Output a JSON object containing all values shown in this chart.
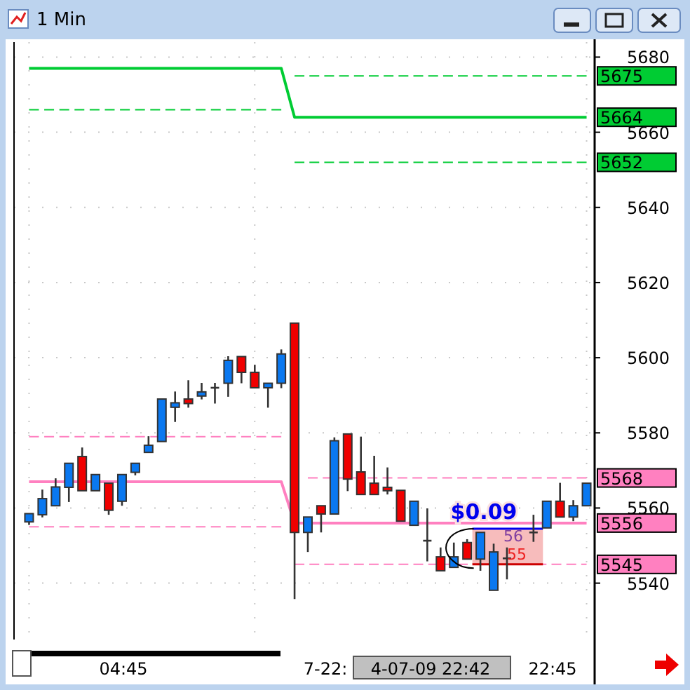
{
  "chart_data": {
    "type": "candlestick",
    "title": "1 Min",
    "categories": [
      null,
      null,
      null,
      null,
      null,
      null,
      null,
      null,
      null,
      null,
      null,
      null,
      null,
      null,
      null,
      null,
      null,
      null,
      null,
      null,
      null,
      null,
      null,
      null,
      null,
      null,
      null,
      null,
      null,
      null,
      null,
      null,
      null,
      null,
      null,
      null,
      null,
      null,
      null,
      null,
      null,
      null,
      null
    ],
    "ohlc": [
      [
        5556.3,
        5558.5,
        5555.5,
        5558.5
      ],
      [
        5558.2,
        5564.9,
        5557.5,
        5562.5
      ],
      [
        5560.6,
        5567.9,
        5560.6,
        5565.6
      ],
      [
        5565.5,
        5571.9,
        5561.6,
        5571.9
      ],
      [
        5573.7,
        5576.1,
        5564.6,
        5564.6
      ],
      [
        5564.6,
        5568.9,
        5564.6,
        5568.9
      ],
      [
        5566.6,
        5566.6,
        5558.2,
        5559.4
      ],
      [
        5561.8,
        5568.9,
        5560.6,
        5568.9
      ],
      [
        5569.5,
        5571.9,
        5568.7,
        5571.9
      ],
      [
        5574.8,
        5579.1,
        5574.8,
        5576.7
      ],
      [
        5577.7,
        5589.0,
        5577.7,
        5589.0
      ],
      [
        5586.8,
        5591.0,
        5582.9,
        5588.0
      ],
      [
        5589.0,
        5594.0,
        5586.7,
        5587.8
      ],
      [
        5589.8,
        5593.3,
        5588.9,
        5590.9
      ],
      [
        5592.0,
        5593.3,
        5587.8,
        5592.0
      ],
      [
        5593.2,
        5600.4,
        5589.6,
        5599.3
      ],
      [
        5600.3,
        5600.3,
        5593.2,
        5596.1
      ],
      [
        5596.1,
        5598.1,
        5592.0,
        5592.0
      ],
      [
        5592.0,
        5593.2,
        5586.7,
        5593.2
      ],
      [
        5593.2,
        5602.2,
        5591.9,
        5601.0
      ],
      [
        5609.2,
        5609.2,
        5535.8,
        5553.5
      ],
      [
        5553.5,
        5557.6,
        5548.3,
        5557.6
      ],
      [
        5560.6,
        5560.6,
        5553.5,
        5558.4
      ],
      [
        5558.4,
        5578.8,
        5558.4,
        5577.9
      ],
      [
        5579.7,
        5579.7,
        5564.5,
        5567.7
      ],
      [
        5569.6,
        5579.0,
        5563.6,
        5563.6
      ],
      [
        5566.6,
        5573.9,
        5563.6,
        5563.6
      ],
      [
        5565.5,
        5570.8,
        5563.6,
        5564.6
      ],
      [
        5564.7,
        5564.7,
        5556.5,
        5556.5
      ],
      [
        5555.4,
        5561.8,
        5555.4,
        5561.8
      ],
      [
        5551.3,
        5559.9,
        5545.8,
        5551.3
      ],
      [
        5547.0,
        5549.5,
        5543.3,
        5543.3
      ],
      [
        5544.2,
        5550.8,
        5544.2,
        5547.0
      ],
      [
        5550.8,
        5551.7,
        5546.4,
        5546.4
      ],
      [
        5546.4,
        5553.5,
        5543.3,
        5553.5
      ],
      [
        5538.1,
        5550.5,
        5538.1,
        5548.3
      ],
      [
        5546.6,
        5549.5,
        5541.0,
        5546.6
      ],
      null,
      [
        5553.5,
        5558.2,
        5551.0,
        5553.5
      ],
      [
        5554.7,
        5561.8,
        5554.7,
        5561.8
      ],
      [
        5561.8,
        5566.7,
        5557.6,
        5557.6
      ],
      [
        5557.6,
        5562.1,
        5556.5,
        5560.6
      ],
      [
        5560.6,
        5566.6,
        5560.6,
        5566.6
      ]
    ],
    "colors": [
      "#0a78f0",
      "#0a78f0",
      "#0a78f0",
      "#0a78f0",
      "#f00000",
      "#0a78f0",
      "#f00000",
      "#0a78f0",
      "#0a78f0",
      "#0a78f0",
      "#0a78f0",
      "#0a78f0",
      "#f00000",
      "#0a78f0",
      "#333333",
      "#0a78f0",
      "#f00000",
      "#f00000",
      "#0a78f0",
      "#0a78f0",
      "#f00000",
      "#0a78f0",
      "#f00000",
      "#0a78f0",
      "#f00000",
      "#f00000",
      "#f00000",
      "#f00000",
      "#f00000",
      "#0a78f0",
      "#333333",
      "#f00000",
      "#0a78f0",
      "#f00000",
      "#0a78f0",
      "#0a78f0",
      "#333333",
      null,
      "#333333",
      "#0a78f0",
      "#f00000",
      "#0a78f0",
      "#0a78f0"
    ],
    "series": [
      {
        "type": "line",
        "color": "#00cc33",
        "line_style": "solid",
        "values": [
          5677,
          5677,
          5677,
          5677,
          5677,
          5677,
          5677,
          5677,
          5677,
          5677,
          5677,
          5677,
          5677,
          5677,
          5677,
          5677,
          5677,
          5677,
          5677,
          5677,
          5664,
          5664,
          5664,
          5664,
          5664,
          5664,
          5664,
          5664,
          5664,
          5664,
          5664,
          5664,
          5664,
          5664,
          5664,
          5664,
          5664,
          5664,
          5664,
          5664,
          5664,
          5664,
          5664
        ],
        "value_labels": [
          null,
          null,
          null,
          null,
          null,
          null,
          null,
          null,
          null,
          null,
          null,
          null,
          null,
          null,
          null,
          null,
          null,
          null,
          null,
          null,
          null,
          null,
          null,
          null,
          null,
          null,
          null,
          null,
          null,
          null,
          null,
          null,
          null,
          null,
          null,
          null,
          null,
          null,
          null,
          null,
          null,
          null,
          "5664"
        ]
      },
      {
        "type": "line",
        "color": "#00cc33",
        "line_style": "dashed",
        "values": [
          5666,
          5666,
          5666,
          5666,
          5666,
          5666,
          5666,
          5666,
          5666,
          5666,
          5666,
          5666,
          5666,
          5666,
          5666,
          5666,
          5666,
          5666,
          5666,
          5666,
          null,
          null,
          null,
          null,
          null,
          null,
          null,
          null,
          null,
          null,
          null,
          null,
          null,
          null,
          null,
          null,
          null,
          null,
          null,
          null,
          null,
          null,
          null
        ]
      },
      {
        "type": "line",
        "color": "#00cc33",
        "line_style": "dashed",
        "values": [
          null,
          null,
          null,
          null,
          null,
          null,
          null,
          null,
          null,
          null,
          null,
          null,
          null,
          null,
          null,
          null,
          null,
          null,
          null,
          null,
          5675,
          5675,
          5675,
          5675,
          5675,
          5675,
          5675,
          5675,
          5675,
          5675,
          5675,
          5675,
          5675,
          5675,
          5675,
          5675,
          5675,
          5675,
          5675,
          5675,
          5675,
          5675,
          5675
        ],
        "value_labels": [
          null,
          null,
          null,
          null,
          null,
          null,
          null,
          null,
          null,
          null,
          null,
          null,
          null,
          null,
          null,
          null,
          null,
          null,
          null,
          null,
          null,
          null,
          null,
          null,
          null,
          null,
          null,
          null,
          null,
          null,
          null,
          null,
          null,
          null,
          null,
          null,
          null,
          null,
          null,
          null,
          null,
          null,
          "5675"
        ]
      },
      {
        "type": "line",
        "color": "#00cc33",
        "line_style": "dashed",
        "values": [
          null,
          null,
          null,
          null,
          null,
          null,
          null,
          null,
          null,
          null,
          null,
          null,
          null,
          null,
          null,
          null,
          null,
          null,
          null,
          null,
          5652,
          5652,
          5652,
          5652,
          5652,
          5652,
          5652,
          5652,
          5652,
          5652,
          5652,
          5652,
          5652,
          5652,
          5652,
          5652,
          5652,
          5652,
          5652,
          5652,
          5652,
          5652,
          5652
        ],
        "value_labels": [
          null,
          null,
          null,
          null,
          null,
          null,
          null,
          null,
          null,
          null,
          null,
          null,
          null,
          null,
          null,
          null,
          null,
          null,
          null,
          null,
          null,
          null,
          null,
          null,
          null,
          null,
          null,
          null,
          null,
          null,
          null,
          null,
          null,
          null,
          null,
          null,
          null,
          null,
          null,
          null,
          null,
          null,
          "5652"
        ]
      },
      {
        "type": "line",
        "color": "#ff80c0",
        "line_style": "solid",
        "values": [
          5567,
          5567,
          5567,
          5567,
          5567,
          5567,
          5567,
          5567,
          5567,
          5567,
          5567,
          5567,
          5567,
          5567,
          5567,
          5567,
          5567,
          5567,
          5567,
          5567,
          5556,
          5556,
          5556,
          5556,
          5556,
          5556,
          5556,
          5556,
          5556,
          5556,
          5556,
          5556,
          5556,
          5556,
          5556,
          5556,
          5556,
          5556,
          5556,
          5556,
          5556,
          5556,
          5556
        ],
        "value_labels": [
          null,
          null,
          null,
          null,
          null,
          null,
          null,
          null,
          null,
          null,
          null,
          null,
          null,
          null,
          null,
          null,
          null,
          null,
          null,
          null,
          null,
          null,
          null,
          null,
          null,
          null,
          null,
          null,
          null,
          null,
          null,
          null,
          null,
          null,
          null,
          null,
          null,
          null,
          null,
          null,
          null,
          null,
          "5556"
        ]
      },
      {
        "type": "line",
        "color": "#ff80c0",
        "line_style": "dashed",
        "values": [
          5579,
          5579,
          5579,
          5579,
          5579,
          5579,
          5579,
          5579,
          5579,
          5579,
          5579,
          5579,
          5579,
          5579,
          5579,
          5579,
          5579,
          5579,
          5579,
          5579,
          null,
          null,
          null,
          null,
          null,
          null,
          null,
          null,
          null,
          null,
          null,
          null,
          null,
          null,
          null,
          null,
          null,
          null,
          null,
          null,
          null,
          null,
          null
        ]
      },
      {
        "type": "line",
        "color": "#ff80c0",
        "line_style": "dashed",
        "values": [
          5555,
          5555,
          5555,
          5555,
          5555,
          5555,
          5555,
          5555,
          5555,
          5555,
          5555,
          5555,
          5555,
          5555,
          5555,
          5555,
          5555,
          5555,
          5555,
          5555,
          null,
          null,
          null,
          null,
          null,
          null,
          null,
          null,
          null,
          null,
          null,
          null,
          null,
          null,
          null,
          null,
          null,
          null,
          null,
          null,
          null,
          null,
          null
        ]
      },
      {
        "type": "line",
        "color": "#ff80c0",
        "line_style": "dashed",
        "values": [
          null,
          null,
          null,
          null,
          null,
          null,
          null,
          null,
          null,
          null,
          null,
          null,
          null,
          null,
          null,
          null,
          null,
          null,
          null,
          null,
          null,
          5568,
          5568,
          5568,
          5568,
          5568,
          5568,
          5568,
          5568,
          5568,
          5568,
          5568,
          5568,
          5568,
          5568,
          5568,
          5568,
          5568,
          5568,
          5568,
          5568,
          5568,
          5568
        ],
        "value_labels": [
          null,
          null,
          null,
          null,
          null,
          null,
          null,
          null,
          null,
          null,
          null,
          null,
          null,
          null,
          null,
          null,
          null,
          null,
          null,
          null,
          null,
          null,
          null,
          null,
          null,
          null,
          null,
          null,
          null,
          null,
          null,
          null,
          null,
          null,
          null,
          null,
          null,
          null,
          null,
          null,
          null,
          null,
          "5568"
        ]
      },
      {
        "type": "line",
        "color": "#ff80c0",
        "line_style": "dashed",
        "values": [
          null,
          null,
          null,
          null,
          null,
          null,
          null,
          null,
          null,
          null,
          null,
          null,
          null,
          null,
          null,
          null,
          null,
          null,
          null,
          null,
          5545,
          5545,
          5545,
          5545,
          5545,
          5545,
          5545,
          5545,
          5545,
          5545,
          5545,
          5545,
          5545,
          5545,
          5545,
          null,
          5545,
          5545,
          5545,
          5545,
          5545,
          5545,
          5545
        ],
        "value_labels": [
          null,
          null,
          null,
          null,
          null,
          null,
          null,
          null,
          null,
          null,
          null,
          null,
          null,
          null,
          null,
          null,
          null,
          null,
          null,
          null,
          null,
          null,
          null,
          null,
          null,
          null,
          null,
          null,
          null,
          null,
          null,
          null,
          null,
          null,
          null,
          null,
          null,
          null,
          null,
          null,
          null,
          null,
          "5545"
        ]
      }
    ],
    "ylim": [
      5525,
      5684
    ],
    "yticks": [
      5540,
      5560,
      5580,
      5600,
      5620,
      5640,
      5660,
      5680
    ],
    "grid": true,
    "tick_labels": "y",
    "annotations": [
      "$0.09",
      "56",
      "55",
      "04:45",
      "7-22:",
      "4-07-09 22:42",
      "22:45"
    ]
  }
}
